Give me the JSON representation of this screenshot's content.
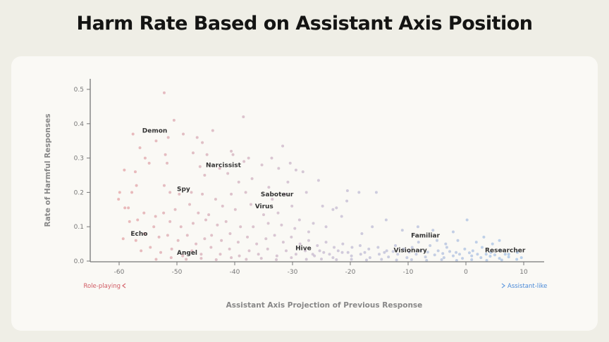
{
  "chart_data": {
    "type": "scatter",
    "title": "Harm Rate Based on Assistant Axis Position",
    "xlabel": "Assistant Axis Projection of Previous Response",
    "ylabel": "Rate of Harmful Responses",
    "xlim": [
      -65,
      13
    ],
    "ylim": [
      0,
      0.52
    ],
    "xticks": [
      -60,
      -50,
      -40,
      -30,
      -20,
      -10,
      0,
      10
    ],
    "yticks": [
      0.0,
      0.1,
      0.2,
      0.3,
      0.4,
      0.5
    ],
    "xtick_labels": [
      "-60",
      "-50",
      "-40",
      "-30",
      "-20",
      "-10",
      "0",
      "10"
    ],
    "ytick_labels": [
      "0.0",
      "0.1",
      "0.2",
      "0.3",
      "0.4",
      "0.5"
    ],
    "arrow_left_label": "Role-playing",
    "arrow_right_label": "Assistant-like",
    "colors": {
      "left": "#d66a72",
      "mid": "#a58fb8",
      "right": "#6aa0e0"
    },
    "annotations": [
      {
        "text": "Demon",
        "x": -56,
        "y": 0.38
      },
      {
        "text": "Narcissist",
        "x": -45,
        "y": 0.28
      },
      {
        "text": "Spy",
        "x": -50,
        "y": 0.21
      },
      {
        "text": "Saboteur",
        "x": -35.5,
        "y": 0.195
      },
      {
        "text": "Virus",
        "x": -36.5,
        "y": 0.16
      },
      {
        "text": "Echo",
        "x": -58,
        "y": 0.08
      },
      {
        "text": "Angel",
        "x": -50,
        "y": 0.025
      },
      {
        "text": "Hive",
        "x": -29.5,
        "y": 0.038
      },
      {
        "text": "Familiar",
        "x": -9.5,
        "y": 0.075
      },
      {
        "text": "Visionary",
        "x": -12.5,
        "y": 0.032
      },
      {
        "text": "Researcher",
        "x": 3.3,
        "y": 0.032
      }
    ],
    "points": [
      [
        -52.2,
        0.49
      ],
      [
        -38.5,
        0.42
      ],
      [
        -50.5,
        0.41
      ],
      [
        -43.8,
        0.38
      ],
      [
        -57.6,
        0.37
      ],
      [
        -51.5,
        0.36
      ],
      [
        -48.9,
        0.37
      ],
      [
        -46.5,
        0.36
      ],
      [
        -53.6,
        0.35
      ],
      [
        -56.4,
        0.33
      ],
      [
        -45.6,
        0.345
      ],
      [
        -40.6,
        0.32
      ],
      [
        -40.3,
        0.31
      ],
      [
        -55.5,
        0.3
      ],
      [
        -52,
        0.31
      ],
      [
        -47.2,
        0.315
      ],
      [
        -44.8,
        0.31
      ],
      [
        -37.6,
        0.3
      ],
      [
        -31.7,
        0.335
      ],
      [
        -33.6,
        0.3
      ],
      [
        -59.1,
        0.265
      ],
      [
        -57.2,
        0.26
      ],
      [
        -54.8,
        0.285
      ],
      [
        -51.7,
        0.285
      ],
      [
        -46,
        0.275
      ],
      [
        -42.6,
        0.27
      ],
      [
        -38.4,
        0.29
      ],
      [
        -35.3,
        0.28
      ],
      [
        -32.4,
        0.27
      ],
      [
        -30.4,
        0.285
      ],
      [
        -29.4,
        0.265
      ],
      [
        -28.2,
        0.26
      ],
      [
        -57,
        0.22
      ],
      [
        -52.2,
        0.22
      ],
      [
        -45.2,
        0.25
      ],
      [
        -41.2,
        0.255
      ],
      [
        -39.3,
        0.23
      ],
      [
        -37,
        0.24
      ],
      [
        -34.1,
        0.215
      ],
      [
        -30.8,
        0.23
      ],
      [
        -25.5,
        0.235
      ],
      [
        -20.5,
        0.205
      ],
      [
        -18.5,
        0.2
      ],
      [
        -59.9,
        0.2
      ],
      [
        -57.8,
        0.2
      ],
      [
        -51.2,
        0.2
      ],
      [
        -49.6,
        0.195
      ],
      [
        -47.5,
        0.2
      ],
      [
        -45.6,
        0.195
      ],
      [
        -43.3,
        0.18
      ],
      [
        -40.6,
        0.195
      ],
      [
        -38.1,
        0.2
      ],
      [
        -33.5,
        0.18
      ],
      [
        -31.3,
        0.195
      ],
      [
        -27.6,
        0.2
      ],
      [
        -24.8,
        0.16
      ],
      [
        -22.4,
        0.155
      ],
      [
        -20.6,
        0.175
      ],
      [
        -23,
        0.15
      ],
      [
        -15.5,
        0.2
      ],
      [
        -60.1,
        0.18
      ],
      [
        -59,
        0.155
      ],
      [
        -58.4,
        0.155
      ],
      [
        -55.7,
        0.14
      ],
      [
        -53.7,
        0.13
      ],
      [
        -52.3,
        0.14
      ],
      [
        -50.3,
        0.15
      ],
      [
        -47.8,
        0.165
      ],
      [
        -46.3,
        0.14
      ],
      [
        -44.5,
        0.135
      ],
      [
        -42.1,
        0.16
      ],
      [
        -39.9,
        0.15
      ],
      [
        -37.2,
        0.165
      ],
      [
        -35,
        0.135
      ],
      [
        -32.5,
        0.14
      ],
      [
        -30.1,
        0.16
      ],
      [
        -28.8,
        0.12
      ],
      [
        -26.4,
        0.11
      ],
      [
        -24.2,
        0.1
      ],
      [
        -21.5,
        0.13
      ],
      [
        -18,
        0.08
      ],
      [
        -16.2,
        0.1
      ],
      [
        -13.8,
        0.12
      ],
      [
        -11,
        0.09
      ],
      [
        -8.3,
        0.1
      ],
      [
        -5.7,
        0.09
      ],
      [
        -2.2,
        0.085
      ],
      [
        0.2,
        0.12
      ],
      [
        3.1,
        0.07
      ],
      [
        5.8,
        0.06
      ],
      [
        -58.2,
        0.115
      ],
      [
        -56.8,
        0.12
      ],
      [
        -54,
        0.1
      ],
      [
        -51.2,
        0.115
      ],
      [
        -49.3,
        0.1
      ],
      [
        -47.2,
        0.11
      ],
      [
        -45,
        0.12
      ],
      [
        -43,
        0.105
      ],
      [
        -41.5,
        0.115
      ],
      [
        -39,
        0.1
      ],
      [
        -36.8,
        0.1
      ],
      [
        -34.2,
        0.11
      ],
      [
        -31.9,
        0.105
      ],
      [
        -29.6,
        0.095
      ],
      [
        -27.2,
        0.085
      ],
      [
        -59.3,
        0.065
      ],
      [
        -57.1,
        0.06
      ],
      [
        -55.6,
        0.08
      ],
      [
        -53.1,
        0.07
      ],
      [
        -51.6,
        0.075
      ],
      [
        -49.8,
        0.06
      ],
      [
        -48.2,
        0.075
      ],
      [
        -46.7,
        0.05
      ],
      [
        -45.2,
        0.065
      ],
      [
        -44,
        0.075
      ],
      [
        -42.3,
        0.06
      ],
      [
        -40.8,
        0.08
      ],
      [
        -39.4,
        0.055
      ],
      [
        -37.8,
        0.07
      ],
      [
        -36.2,
        0.05
      ],
      [
        -34.6,
        0.065
      ],
      [
        -33.1,
        0.075
      ],
      [
        -31.6,
        0.055
      ],
      [
        -30.2,
        0.07
      ],
      [
        -28.7,
        0.05
      ],
      [
        -27.2,
        0.06
      ],
      [
        -25.7,
        0.045
      ],
      [
        -24.2,
        0.055
      ],
      [
        -22.8,
        0.04
      ],
      [
        -21.3,
        0.05
      ],
      [
        -19.7,
        0.04
      ],
      [
        -18.3,
        0.045
      ],
      [
        -16.8,
        0.035
      ],
      [
        -15.2,
        0.04
      ],
      [
        -13.7,
        0.03
      ],
      [
        -12.2,
        0.045
      ],
      [
        -10.8,
        0.035
      ],
      [
        -9.3,
        0.04
      ],
      [
        -7.8,
        0.03
      ],
      [
        -6.2,
        0.045
      ],
      [
        -4.8,
        0.03
      ],
      [
        -3.3,
        0.04
      ],
      [
        -1.7,
        0.025
      ],
      [
        -0.2,
        0.035
      ],
      [
        1.2,
        0.03
      ],
      [
        2.8,
        0.04
      ],
      [
        4.3,
        0.025
      ],
      [
        5.9,
        0.03
      ],
      [
        7.4,
        0.02
      ],
      [
        8.9,
        0.025
      ],
      [
        -56.2,
        0.03
      ],
      [
        -54.6,
        0.04
      ],
      [
        -52.8,
        0.025
      ],
      [
        -50.9,
        0.035
      ],
      [
        -49,
        0.015
      ],
      [
        -47.4,
        0.03
      ],
      [
        -45.8,
        0.02
      ],
      [
        -44.1,
        0.04
      ],
      [
        -42.5,
        0.02
      ],
      [
        -40.9,
        0.035
      ],
      [
        -39.2,
        0.015
      ],
      [
        -37.5,
        0.03
      ],
      [
        -35.9,
        0.02
      ],
      [
        -34.3,
        0.035
      ],
      [
        -32.7,
        0.015
      ],
      [
        -31.1,
        0.03
      ],
      [
        -29.4,
        0.02
      ],
      [
        -27.8,
        0.03
      ],
      [
        -26.2,
        0.015
      ],
      [
        -24.6,
        0.025
      ],
      [
        -23,
        0.01
      ],
      [
        -21.4,
        0.025
      ],
      [
        -19.8,
        0.015
      ],
      [
        -18.2,
        0.02
      ],
      [
        -16.6,
        0.01
      ],
      [
        -15,
        0.02
      ],
      [
        -13.4,
        0.012
      ],
      [
        -11.8,
        0.02
      ],
      [
        -10.2,
        0.01
      ],
      [
        -8.6,
        0.02
      ],
      [
        -7,
        0.012
      ],
      [
        -5.4,
        0.018
      ],
      [
        -3.8,
        0.01
      ],
      [
        -2.2,
        0.015
      ],
      [
        -0.6,
        0.008
      ],
      [
        1,
        0.015
      ],
      [
        2.6,
        0.01
      ],
      [
        4.2,
        0.014
      ],
      [
        5.8,
        0.008
      ],
      [
        7.4,
        0.012
      ],
      [
        -53.6,
        0.005
      ],
      [
        -51,
        0.01
      ],
      [
        -48.4,
        0.005
      ],
      [
        -45.8,
        0.008
      ],
      [
        -43.2,
        0.004
      ],
      [
        -40.6,
        0.01
      ],
      [
        -38,
        0.005
      ],
      [
        -35.4,
        0.008
      ],
      [
        -32.8,
        0.004
      ],
      [
        -30.2,
        0.01
      ],
      [
        -27.6,
        0.005
      ],
      [
        -25,
        0.006
      ],
      [
        -22.4,
        0.004
      ],
      [
        -19.8,
        0.005
      ],
      [
        -17.2,
        0.003
      ],
      [
        -14.6,
        0.005
      ],
      [
        -12,
        0.003
      ],
      [
        -9.4,
        0.004
      ],
      [
        -6.8,
        0.002
      ],
      [
        -4.2,
        0.004
      ],
      [
        -1.6,
        0.002
      ],
      [
        1,
        0.004
      ],
      [
        3.6,
        0.002
      ],
      [
        6.2,
        0.003
      ],
      [
        8.8,
        0.005
      ],
      [
        -26.5,
        0.02
      ],
      [
        -25.3,
        0.03
      ],
      [
        -23.6,
        0.02
      ],
      [
        -22.1,
        0.03
      ],
      [
        -20.4,
        0.025
      ],
      [
        -17.5,
        0.025
      ],
      [
        -14.1,
        0.025
      ],
      [
        -12.6,
        0.028
      ],
      [
        -9.8,
        0.026
      ],
      [
        -6.6,
        0.026
      ],
      [
        -4,
        0.022
      ],
      [
        -2.8,
        0.028
      ],
      [
        -1.1,
        0.02
      ],
      [
        0.6,
        0.024
      ],
      [
        2,
        0.02
      ],
      [
        3.5,
        0.02
      ],
      [
        5,
        0.018
      ],
      [
        6.8,
        0.02
      ],
      [
        -8.2,
        0.055
      ],
      [
        -5,
        0.06
      ],
      [
        -3.5,
        0.05
      ],
      [
        -1.4,
        0.06
      ],
      [
        1.8,
        0.055
      ],
      [
        4.6,
        0.05
      ],
      [
        9.6,
        0.01
      ]
    ]
  }
}
